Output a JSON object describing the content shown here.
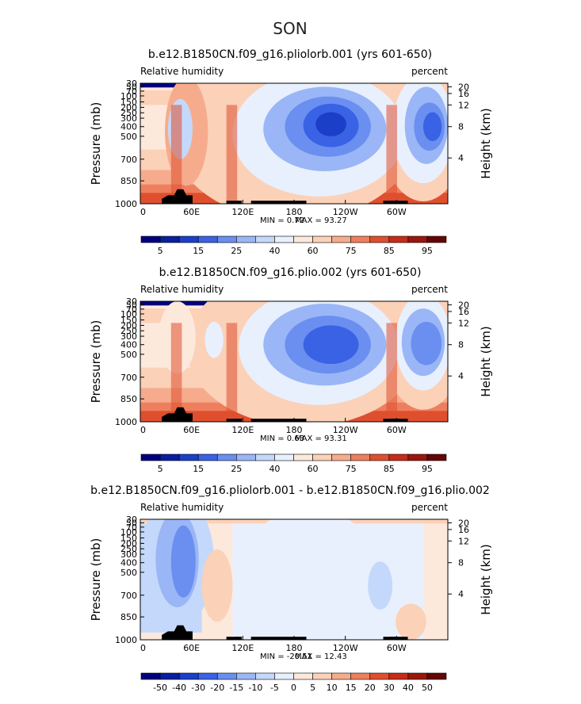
{
  "figure": {
    "title": "SON"
  },
  "colors": {
    "abs": [
      "#00007f",
      "#0a1ea0",
      "#1b3fc8",
      "#3a62e4",
      "#6a8ff0",
      "#9ab6f6",
      "#c4d8fb",
      "#e8f0fe",
      "#fde9dc",
      "#fbd1b8",
      "#f6ac8c",
      "#ee7f5e",
      "#df4f2e",
      "#c62c1a",
      "#9a170d",
      "#650505"
    ],
    "diff": [
      "#00007f",
      "#0a1ea0",
      "#1b3fc8",
      "#3a62e4",
      "#6a8ff0",
      "#9ab6f6",
      "#c4d8fb",
      "#e8f0fe",
      "#fde9dc",
      "#fbd1b8",
      "#f6ac8c",
      "#ee7f5e",
      "#df4f2e",
      "#c62c1a",
      "#9a170d",
      "#650505"
    ]
  },
  "chart_data": [
    {
      "type": "heatmap",
      "title": "b.e12.B1850CN.f09_g16.pliolorb.001 (yrs 601-650)",
      "left_label": "Relative humidity",
      "right_label": "percent",
      "ylabel": "Pressure (mb)",
      "y2label": "Height (km)",
      "y_ticks": [
        "30",
        "50",
        "70",
        "100",
        "150",
        "200",
        "250",
        "300",
        "400",
        "500",
        "700",
        "850",
        "1000"
      ],
      "y2_ticks": [
        "20",
        "16",
        "12",
        "8",
        "4"
      ],
      "x_ticks": [
        "0",
        "60E",
        "120E",
        "180",
        "120W",
        "60W"
      ],
      "stats": {
        "min": "MIN = 0.72",
        "max": "MAX = 93.27"
      },
      "levels": [
        "5",
        "15",
        "25",
        "40",
        "60",
        "75",
        "85",
        "95"
      ],
      "palette": "abs"
    },
    {
      "type": "heatmap",
      "title": "b.e12.B1850CN.f09_g16.plio.002 (yrs 601-650)",
      "left_label": "Relative humidity",
      "right_label": "percent",
      "ylabel": "Pressure (mb)",
      "y2label": "Height (km)",
      "y_ticks": [
        "30",
        "50",
        "70",
        "100",
        "150",
        "200",
        "250",
        "300",
        "400",
        "500",
        "700",
        "850",
        "1000"
      ],
      "y2_ticks": [
        "20",
        "16",
        "12",
        "8",
        "4"
      ],
      "x_ticks": [
        "0",
        "60E",
        "120E",
        "180",
        "120W",
        "60W"
      ],
      "stats": {
        "min": "MIN = 0.63",
        "max": "MAX = 93.31"
      },
      "levels": [
        "5",
        "15",
        "25",
        "40",
        "60",
        "75",
        "85",
        "95"
      ],
      "palette": "abs"
    },
    {
      "type": "heatmap",
      "title": "b.e12.B1850CN.f09_g16.pliolorb.001 - b.e12.B1850CN.f09_g16.plio.002",
      "left_label": "Relative humidity",
      "right_label": "percent",
      "ylabel": "Pressure (mb)",
      "y2label": "Height (km)",
      "y_ticks": [
        "30",
        "50",
        "70",
        "100",
        "150",
        "200",
        "250",
        "300",
        "400",
        "500",
        "700",
        "850",
        "1000"
      ],
      "y2_ticks": [
        "20",
        "16",
        "12",
        "8",
        "4"
      ],
      "x_ticks": [
        "0",
        "60E",
        "120E",
        "180",
        "120W",
        "60W"
      ],
      "stats": {
        "min": "MIN = -20.51",
        "max": "MAX = 12.43"
      },
      "levels": [
        "-50",
        "-40",
        "-30",
        "-20",
        "-15",
        "-10",
        "-5",
        "0",
        "5",
        "10",
        "15",
        "20",
        "30",
        "40",
        "50"
      ],
      "palette": "diff"
    }
  ]
}
